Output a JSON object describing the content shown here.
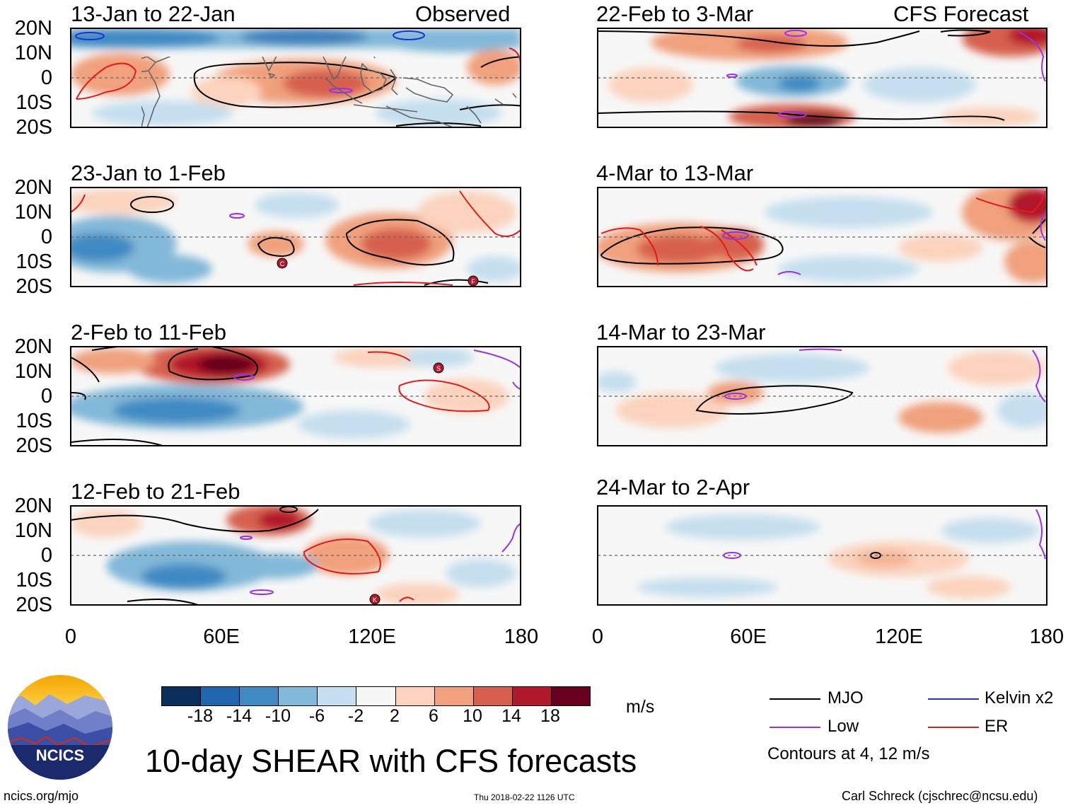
{
  "panels": [
    {
      "title": "13-Jan to 22-Jan",
      "label": "Observed"
    },
    {
      "title": "23-Jan to 1-Feb",
      "label": ""
    },
    {
      "title": "2-Feb to 11-Feb",
      "label": ""
    },
    {
      "title": "12-Feb to 21-Feb",
      "label": ""
    },
    {
      "title": "22-Feb to 3-Mar",
      "label": "CFS Forecast"
    },
    {
      "title": "4-Mar to 13-Mar",
      "label": ""
    },
    {
      "title": "14-Mar to 23-Mar",
      "label": ""
    },
    {
      "title": "24-Mar to 2-Apr",
      "label": ""
    }
  ],
  "axes": {
    "y_ticks": [
      "20N",
      "10N",
      "0",
      "10S",
      "20S"
    ],
    "x_ticks": [
      "0",
      "60E",
      "120E",
      "180"
    ]
  },
  "colorbar": {
    "labels": [
      "-18",
      "-14",
      "-10",
      "-6",
      "-2",
      "2",
      "6",
      "10",
      "14",
      "18"
    ],
    "units": "m/s",
    "colors": [
      "#0b2d5a",
      "#2166ac",
      "#3f8ac3",
      "#82b8d8",
      "#c5dfee",
      "#f7f7f7",
      "#fbd3bd",
      "#f0a07d",
      "#d6604d",
      "#b2182b",
      "#67001f"
    ]
  },
  "legend": {
    "items": [
      {
        "name": "MJO",
        "color": "#000000"
      },
      {
        "name": "Kelvin x2",
        "color": "#1f2fd8"
      },
      {
        "name": "Low",
        "color": "#9b30e6"
      },
      {
        "name": "ER",
        "color": "#e31a1c"
      }
    ],
    "note": "Contours at 4, 12 m/s"
  },
  "storms": [
    "C",
    "F",
    "S",
    "K"
  ],
  "logo": {
    "text": "NCICS"
  },
  "title": "10-day SHEAR with CFS forecasts",
  "footer": {
    "left": "ncics.org/mjo",
    "center": "Thu 2018-02-22 1126 UTC",
    "right": "Carl Schreck (cjschrec@ncsu.edu)"
  }
}
